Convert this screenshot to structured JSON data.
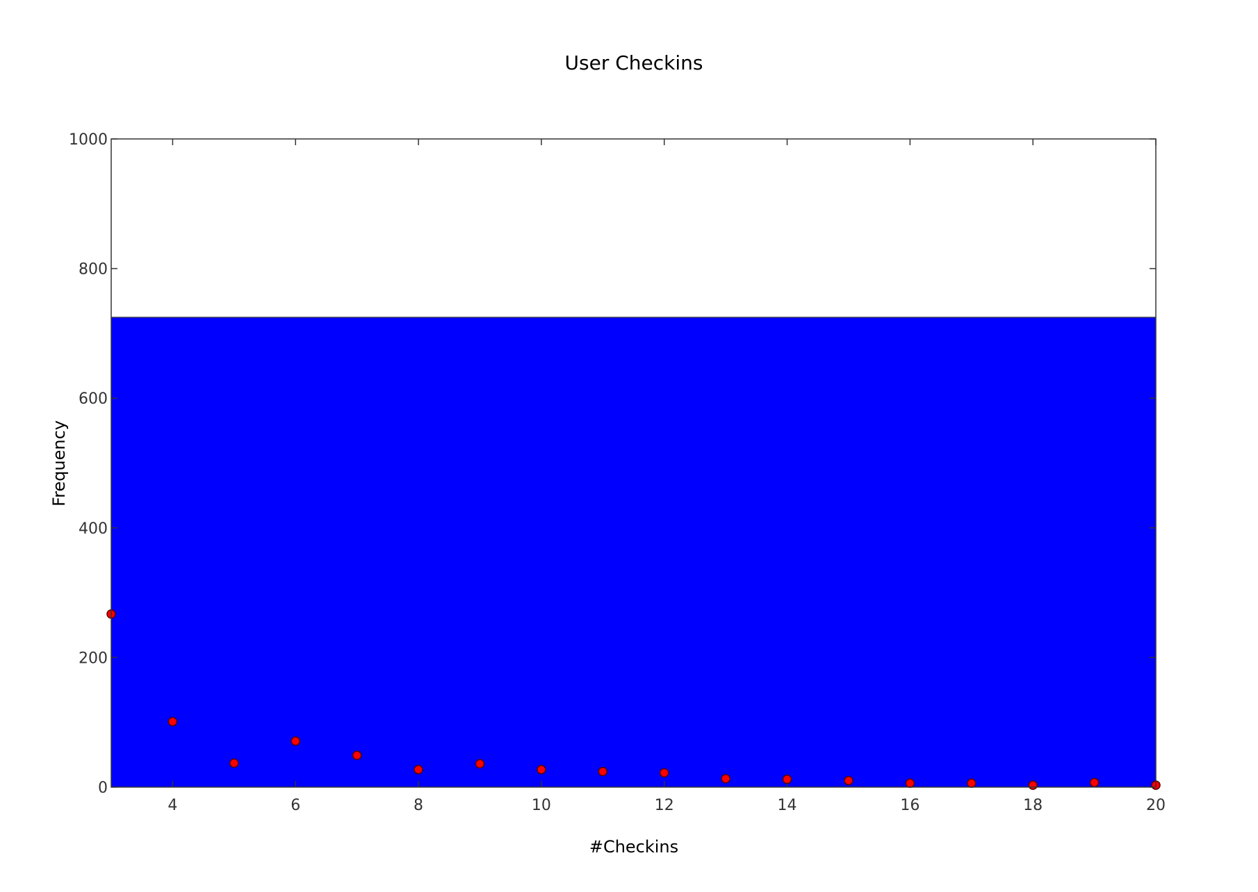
{
  "chart_data": {
    "type": "scatter",
    "title": "User Checkins",
    "xlabel": "#Checkins",
    "ylabel": "Frequency",
    "xlim": [
      3,
      20
    ],
    "ylim": [
      0,
      1000
    ],
    "x_ticks": [
      4,
      6,
      8,
      10,
      12,
      14,
      16,
      18,
      20
    ],
    "y_ticks": [
      0,
      200,
      400,
      600,
      800,
      1000
    ],
    "grid": false,
    "background_band": {
      "from": 0,
      "to": 725,
      "color": "#0000ff"
    },
    "series": [
      {
        "marker_color": "#ff0000",
        "marker_edge": "#550000",
        "x": [
          3,
          4,
          5,
          6,
          7,
          8,
          9,
          10,
          11,
          12,
          13,
          14,
          15,
          16,
          17,
          18,
          19,
          20
        ],
        "y": [
          267,
          101,
          37,
          71,
          49,
          27,
          36,
          27,
          24,
          22,
          13,
          12,
          10,
          6,
          6,
          3,
          7,
          3
        ]
      }
    ]
  }
}
